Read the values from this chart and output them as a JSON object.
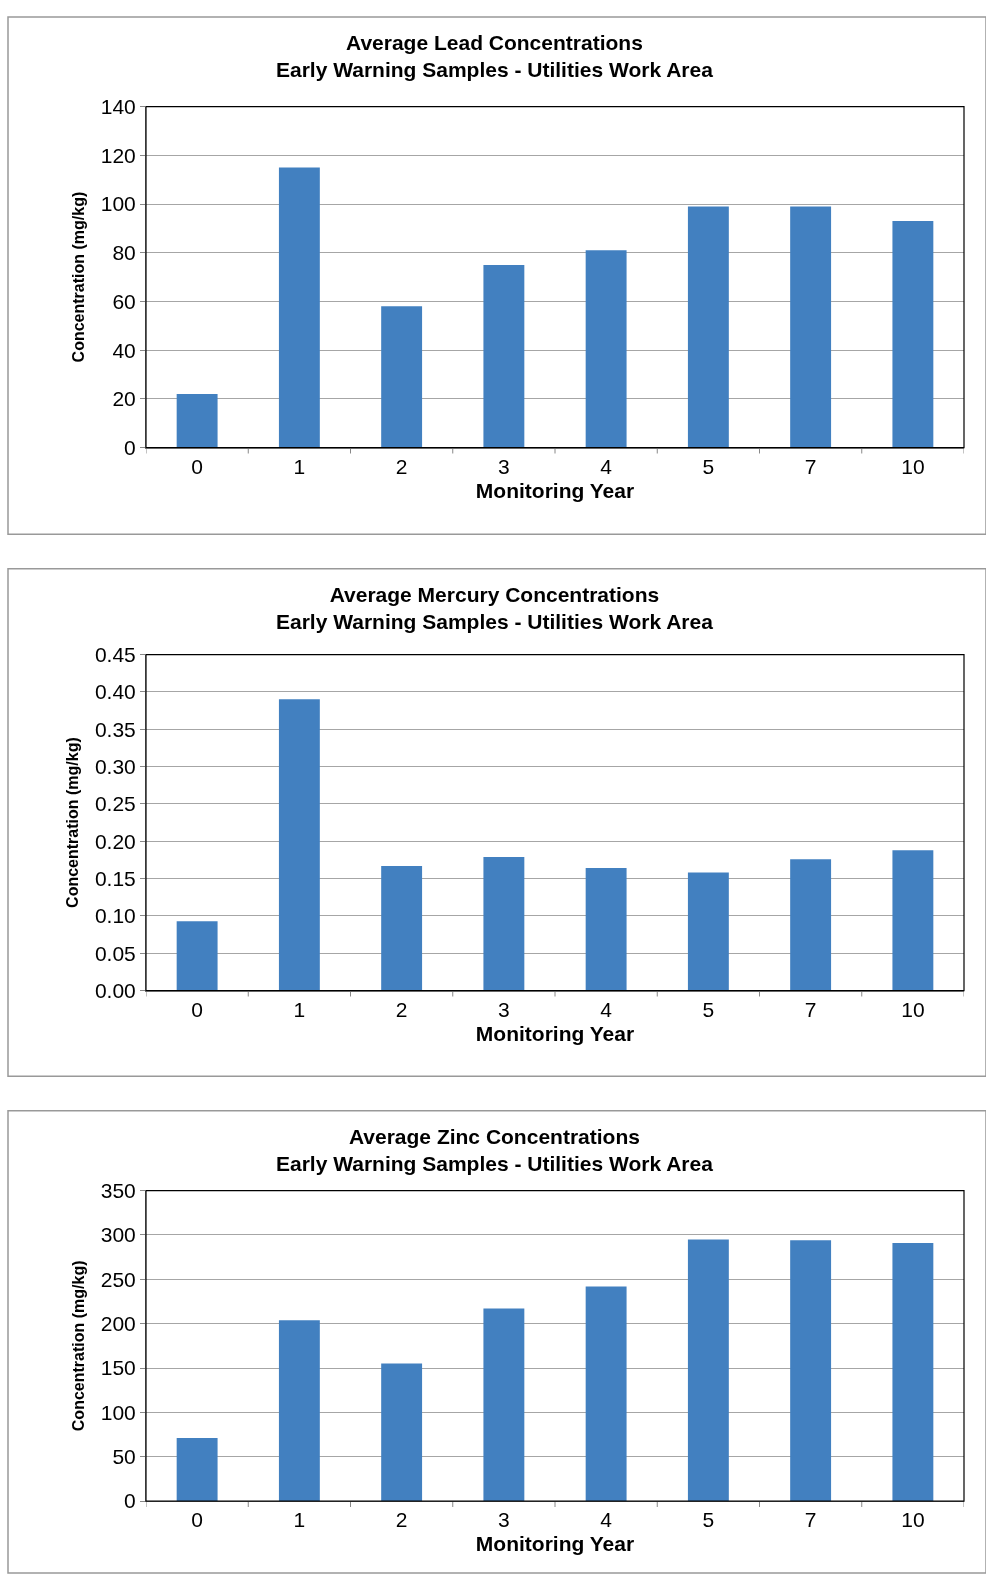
{
  "chart_data": [
    {
      "type": "bar",
      "title": "Average Lead Concentrations\nEarly Warning Samples - Utilities Work Area",
      "xlabel": "Monitoring Year",
      "ylabel": "Concentration (mg/kg)",
      "categories": [
        "0",
        "1",
        "2",
        "3",
        "4",
        "5",
        "7",
        "10"
      ],
      "values": [
        22,
        115,
        58,
        75,
        81,
        99,
        99,
        93
      ],
      "color": "#4280c0",
      "ylim": [
        0,
        140
      ],
      "yticks": [
        0,
        20,
        40,
        60,
        80,
        100,
        120,
        140
      ],
      "grid": "y"
    },
    {
      "type": "bar",
      "title": "Average Mercury Concentrations\nEarly Warning Samples - Utilities Work Area",
      "xlabel": "Monitoring Year",
      "ylabel": "Concentration (mg/kg)",
      "categories": [
        "0",
        "1",
        "2",
        "3",
        "4",
        "5",
        "7",
        "10"
      ],
      "values": [
        0.093,
        0.39,
        0.167,
        0.179,
        0.164,
        0.158,
        0.176,
        0.188
      ],
      "color": "#4280c0",
      "ylim": [
        0,
        0.45
      ],
      "yticks": [
        {
          "value": 0,
          "label": "0.00"
        },
        {
          "value": 0.05,
          "label": "0.05"
        },
        {
          "value": 0.1,
          "label": "0.10"
        },
        {
          "value": 0.15,
          "label": "0.15"
        },
        {
          "value": 0.2,
          "label": "0.20"
        },
        {
          "value": 0.25,
          "label": "0.25"
        },
        {
          "value": 0.3,
          "label": "0.30"
        },
        {
          "value": 0.35,
          "label": "0.35"
        },
        {
          "value": 0.4,
          "label": "0.40"
        },
        {
          "value": 0.45,
          "label": "0.45"
        }
      ],
      "grid": "y"
    },
    {
      "type": "bar",
      "title": "Average Zinc Concentrations\nEarly Warning Samples - Utilities Work Area",
      "xlabel": "Monitoring Year",
      "ylabel": "Concentration (mg/kg)",
      "categories": [
        "0",
        "1",
        "2",
        "3",
        "4",
        "5",
        "7",
        "10"
      ],
      "values": [
        71,
        204,
        155,
        217,
        242,
        295,
        294,
        291
      ],
      "color": "#4280c0",
      "ylim": [
        0,
        350
      ],
      "yticks": [
        0,
        50,
        100,
        150,
        200,
        250,
        300,
        350
      ],
      "grid": "y"
    }
  ]
}
